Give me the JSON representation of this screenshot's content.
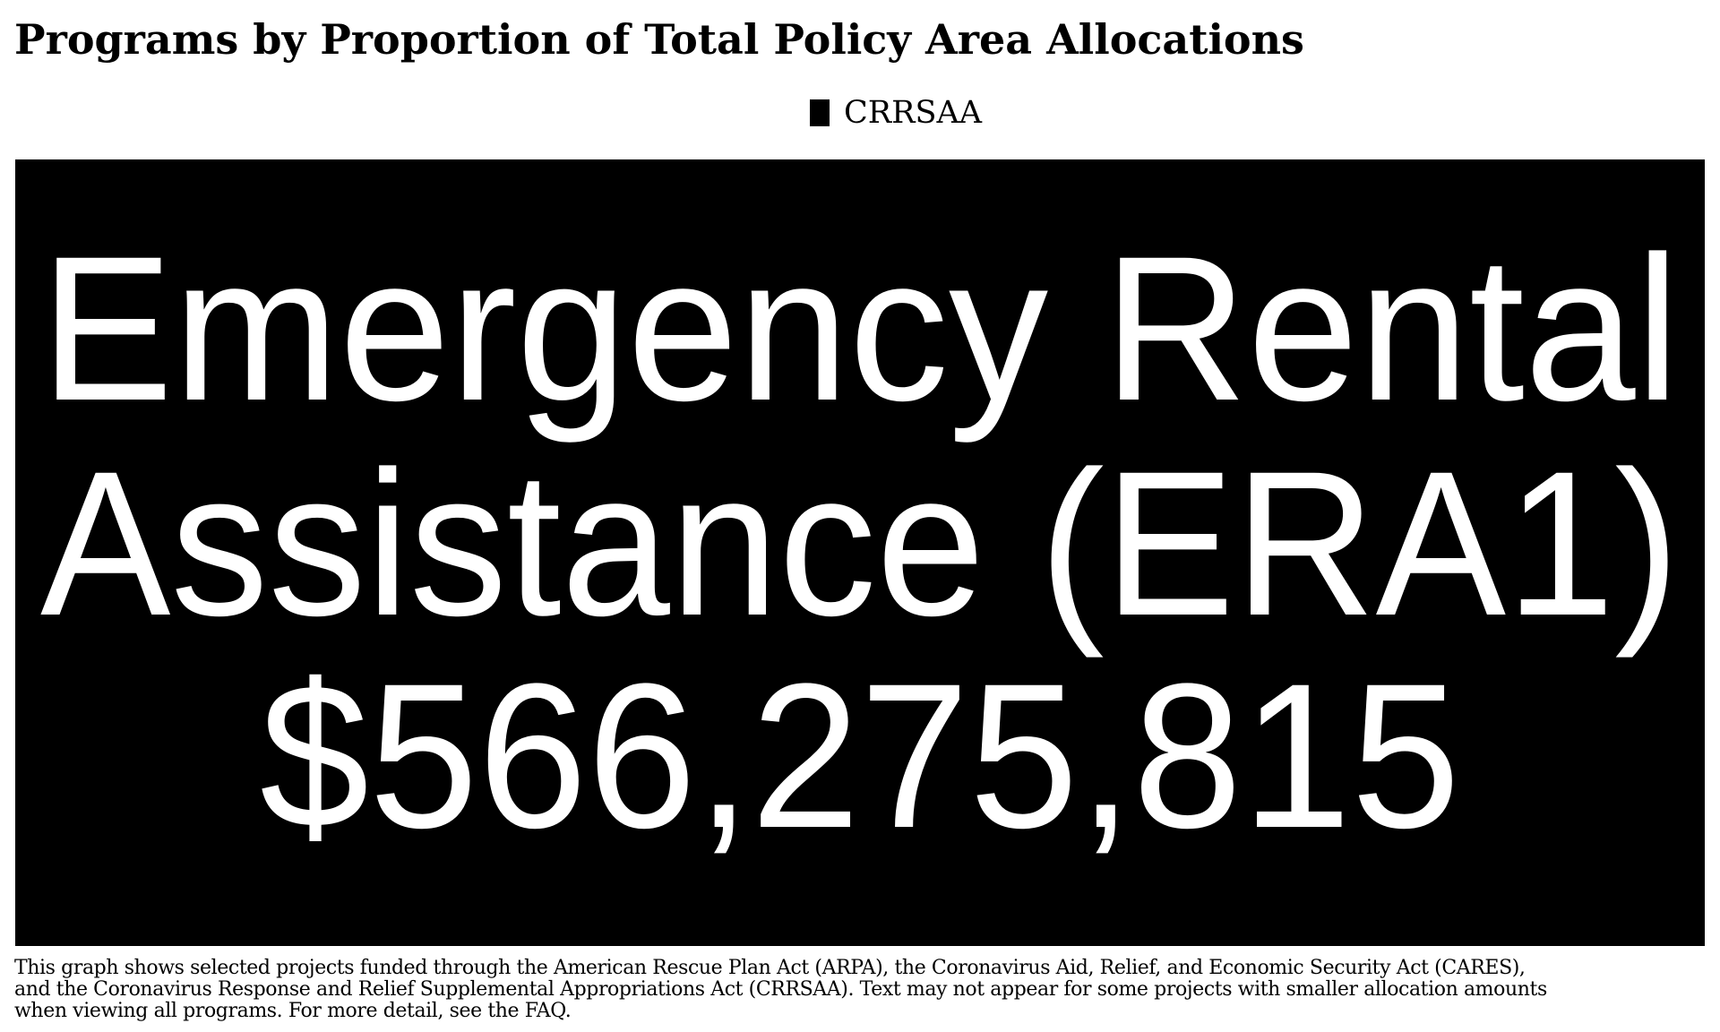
{
  "header": {
    "title": "Programs by Proportion of Total Policy Area Allocations"
  },
  "legend": {
    "items": [
      {
        "label": "CRRSAA",
        "color": "#000000"
      }
    ]
  },
  "chart_data": {
    "type": "treemap",
    "title": "Programs by Proportion of Total Policy Area Allocations",
    "series_legend": "CRRSAA",
    "tiles": [
      {
        "program": "Emergency Rental Assistance (ERA1)",
        "label_lines": [
          "Emergency Rental",
          "Assistance (ERA1)"
        ],
        "value_label": "$566,275,815",
        "value": 566275815,
        "act": "CRRSAA",
        "color": "#000000",
        "text_color": "#ffffff"
      }
    ]
  },
  "footnote": {
    "text": "This graph shows selected projects funded through the American Rescue Plan Act (ARPA), the Coronavirus Aid, Relief, and Economic Security Act (CARES),\nand the Coronavirus Response and Relief Supplemental Appropriations Act (CRRSAA). Text may not appear for some projects with smaller allocation amounts\n when viewing all programs. For more detail, see the FAQ."
  }
}
